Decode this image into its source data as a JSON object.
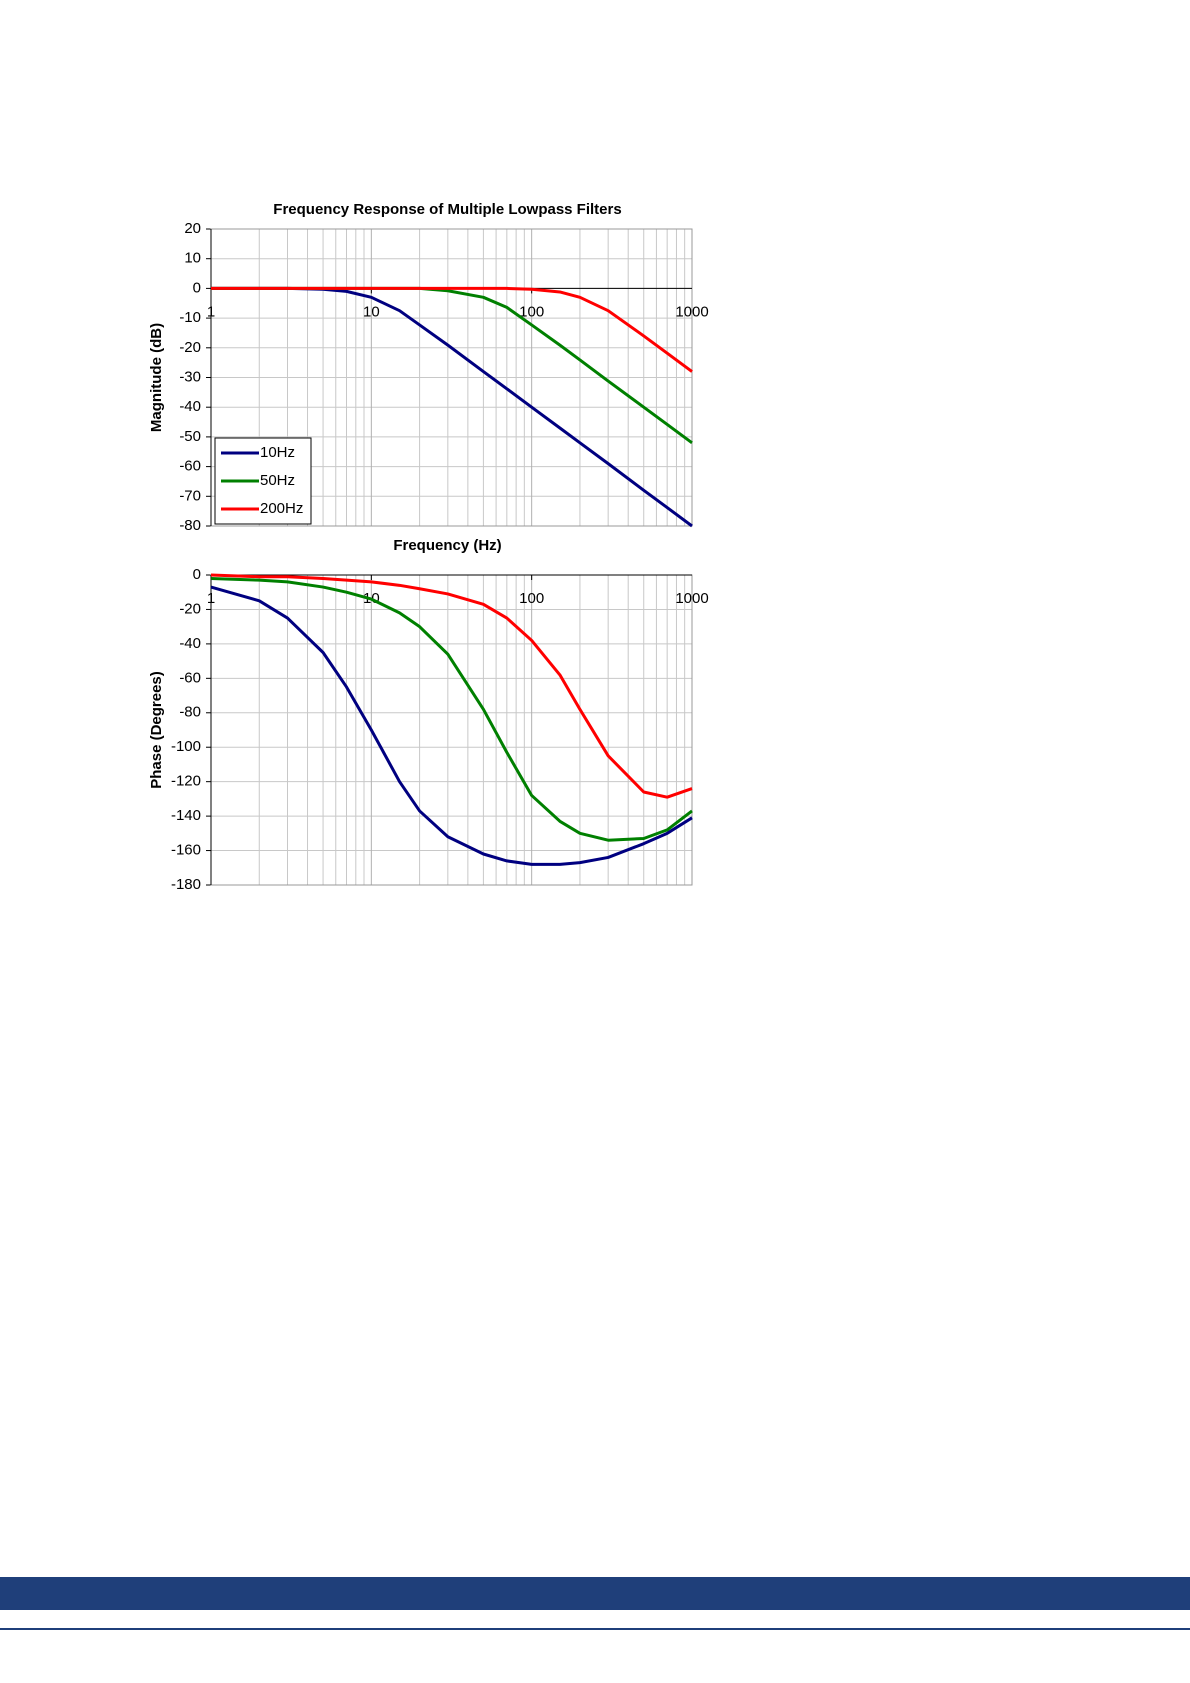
{
  "chart_data": [
    {
      "type": "line",
      "title": "Frequency Response of Multiple Lowpass Filters",
      "x_label": "Frequency (Hz)",
      "y_label": "Magnitude (dB)",
      "x": [
        1,
        2,
        3,
        5,
        7,
        10,
        15,
        20,
        30,
        50,
        70,
        100,
        150,
        200,
        300,
        500,
        700,
        1000
      ],
      "xlim": [
        1,
        1000
      ],
      "xscale": "log",
      "xticks": [
        1,
        10,
        100,
        1000
      ],
      "ylim": [
        -80,
        20
      ],
      "yticks": [
        -80,
        -70,
        -60,
        -50,
        -40,
        -30,
        -20,
        -10,
        0,
        10,
        20
      ],
      "grid": true,
      "minor_grid": true,
      "legend": "lower left",
      "series": [
        {
          "name": "10Hz",
          "color": "#000080",
          "values": [
            0,
            0,
            0,
            -0.3,
            -1,
            -3,
            -7.5,
            -12.3,
            -19.1,
            -28,
            -33.8,
            -40,
            -47,
            -52,
            -59,
            -68,
            -73.8,
            -80
          ]
        },
        {
          "name": "50Hz",
          "color": "#008000",
          "values": [
            0,
            0,
            0,
            0,
            0,
            0,
            0,
            0,
            -0.8,
            -3,
            -6.4,
            -12.3,
            -19.1,
            -24.1,
            -31.2,
            -40,
            -45.8,
            -52
          ]
        },
        {
          "name": "200Hz",
          "color": "#ff0000",
          "values": [
            0,
            0,
            0,
            0,
            0,
            0,
            0,
            0,
            0,
            0,
            0,
            -0.3,
            -1.2,
            -3,
            -7.5,
            -16,
            -21.8,
            -28
          ]
        }
      ]
    },
    {
      "type": "line",
      "y_label": "Phase (Degrees)",
      "x": [
        1,
        2,
        3,
        5,
        7,
        10,
        15,
        20,
        30,
        50,
        70,
        100,
        150,
        200,
        300,
        500,
        700,
        1000
      ],
      "xlim": [
        1,
        1000
      ],
      "xscale": "log",
      "xticks": [
        1,
        10,
        100,
        1000
      ],
      "ylim": [
        -180,
        0
      ],
      "yticks": [
        -180,
        -160,
        -140,
        -120,
        -100,
        -80,
        -60,
        -40,
        -20,
        0
      ],
      "grid": true,
      "minor_grid": true,
      "series": [
        {
          "name": "10Hz",
          "color": "#000080",
          "values": [
            -7,
            -15,
            -25,
            -45,
            -65,
            -90,
            -120,
            -137,
            -152,
            -162,
            -166,
            -168,
            -168,
            -167,
            -164,
            -156,
            -150,
            -141
          ]
        },
        {
          "name": "50Hz",
          "color": "#008000",
          "values": [
            -2,
            -3,
            -4,
            -7,
            -10,
            -14,
            -22,
            -30,
            -46,
            -78,
            -103,
            -128,
            -143,
            -150,
            -154,
            -153,
            -148,
            -137
          ]
        },
        {
          "name": "200Hz",
          "color": "#ff0000",
          "values": [
            0,
            -1,
            -1,
            -2,
            -3,
            -4,
            -6,
            -8,
            -11,
            -17,
            -25,
            -38,
            -58,
            -78,
            -105,
            -126,
            -129,
            -124
          ]
        }
      ]
    }
  ]
}
